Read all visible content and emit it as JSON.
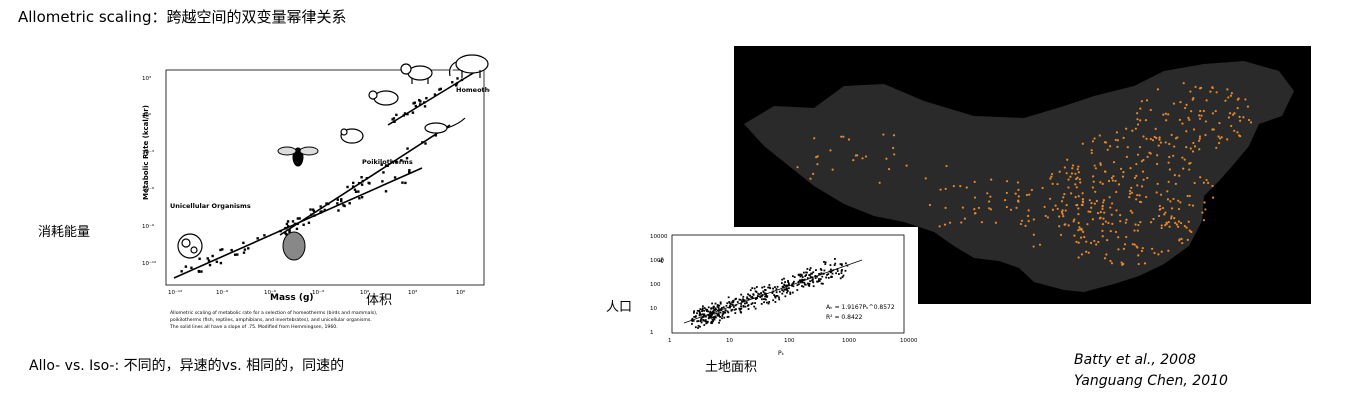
{
  "title": "Allometric scaling：跨越空间的双变量幂律关系",
  "captions": {
    "energy": "消耗能量",
    "mass": "体积",
    "allo": "Allo- vs. Iso-: 不同的，异速的vs. 相同的，同速的",
    "population": "人口",
    "land": "土地面积"
  },
  "citations": [
    "Batty et al., 2008",
    "Yanguang Chen, 2010"
  ],
  "left_figure": {
    "xlabel": "Mass (g)",
    "ylabel": "Metabolic Rate (kcal/hr)",
    "x_ticks": [
      "10⁻¹²",
      "10⁻⁹",
      "10⁻⁶",
      "10⁻³",
      "10⁰",
      "10³",
      "10⁶"
    ],
    "y_ticks": [
      "10³",
      "10⁰",
      "10⁻³",
      "10⁻⁶",
      "10⁻⁹",
      "10⁻¹²"
    ],
    "groups": [
      {
        "label": "Homeotherms"
      },
      {
        "label": "Poikilotherms"
      },
      {
        "label": "Unicellular Organisms"
      }
    ],
    "footnote_lines": [
      "Allometric scaling of metabolic rate for a selection of homeotherms (birds and mammals),",
      "poikilotherms (fish, reptiles, amphibians, and invertebrates), and unicellular organisms.",
      "The solid lines all have a slope of .75. Modified from Hemmingsen, 1960."
    ]
  },
  "scatter": {
    "x_label": "Pₖ",
    "y_label": "Aₖ",
    "x_ticks": [
      "1",
      "10",
      "100",
      "1000",
      "10000"
    ],
    "y_ticks": [
      "10000",
      "1000",
      "100",
      "10",
      "1"
    ],
    "equation": "Aₖ = 1.9167Pₖ^0.8572",
    "r2": "R² = 0.8422"
  },
  "colors": {
    "map_bg": "#000000",
    "land": "#2a2a2a",
    "city_dot": "#e8892b"
  }
}
